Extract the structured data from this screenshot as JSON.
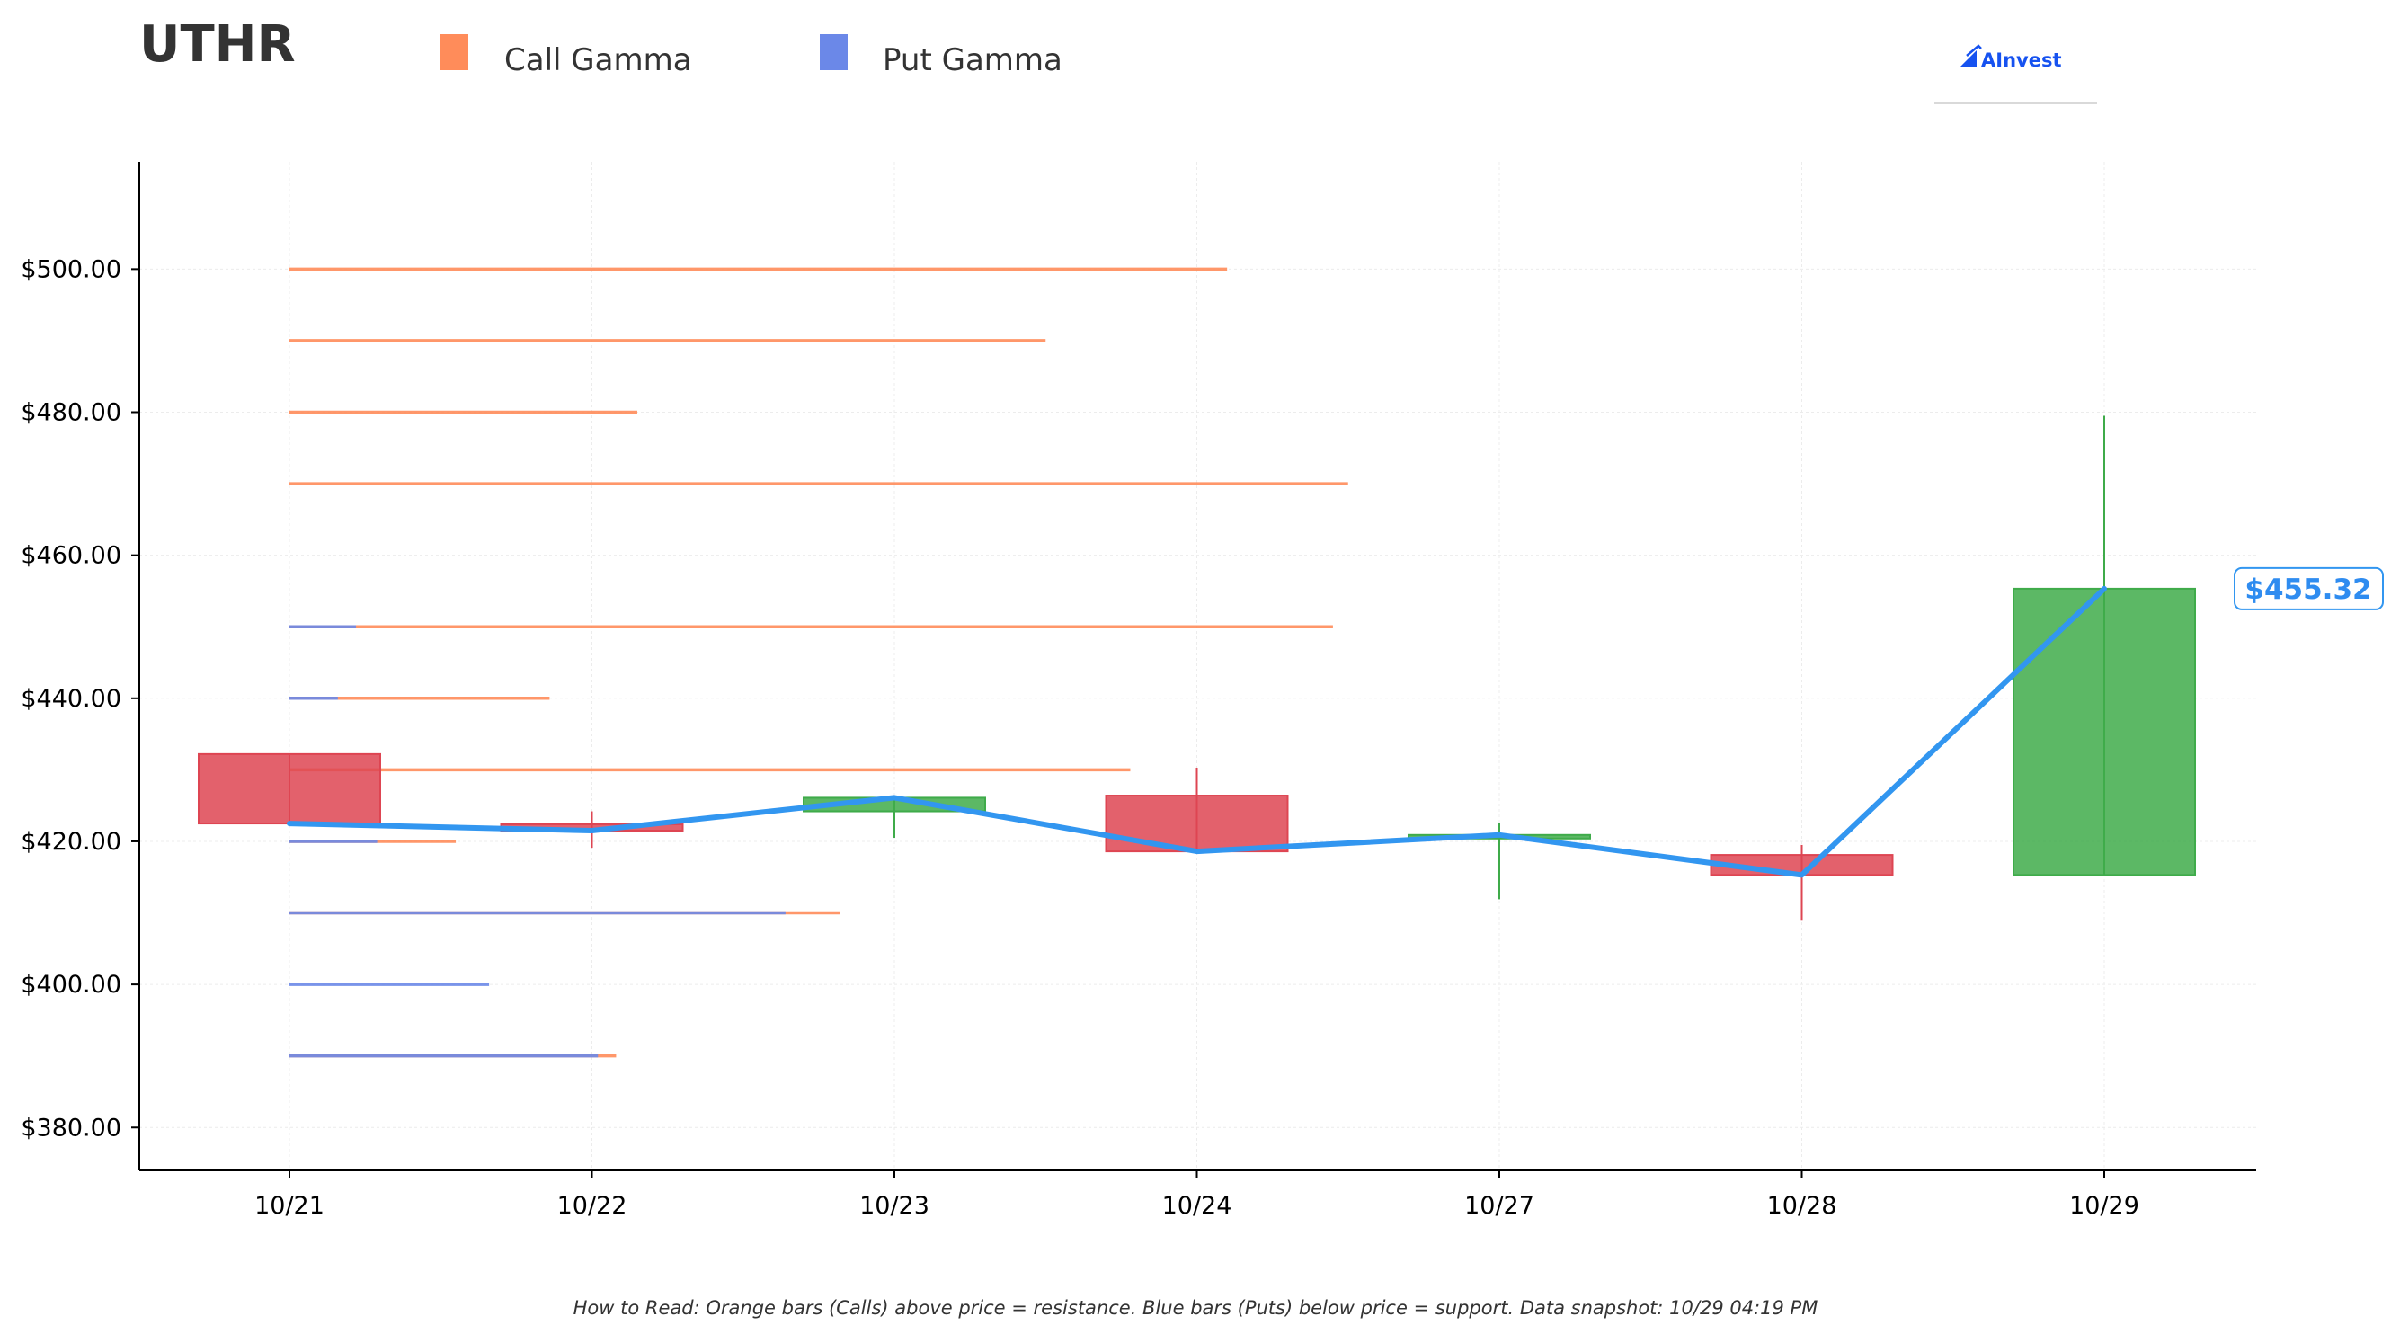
{
  "header": {
    "ticker": "UTHR",
    "brand": "AInvest"
  },
  "legend": [
    {
      "label": "Call Gamma",
      "color": "#ff8c5a"
    },
    {
      "label": "Put Gamma",
      "color": "#6b88e8"
    }
  ],
  "footnote": "How to Read: Orange bars (Calls) above price = resistance. Blue bars (Puts) below price = support. Data snapshot: 10/29 04:19 PM",
  "colors": {
    "up": "#3fab4a",
    "down": "#de4552",
    "price_line": "#3296f0",
    "call": "#ff8c5a",
    "put": "#6b88e8"
  },
  "chart_data": {
    "type": "candlestick",
    "categories": [
      "10/21",
      "10/22",
      "10/23",
      "10/24",
      "10/27",
      "10/28",
      "10/29"
    ],
    "y_ticks": [
      "$380.00",
      "$400.00",
      "$420.00",
      "$440.00",
      "$460.00",
      "$480.00",
      "$500.00"
    ],
    "ylim": [
      374,
      515
    ],
    "candles": [
      {
        "date": "10/21",
        "open": 432.2,
        "close": 422.5,
        "high": 432.2,
        "low": 422.5
      },
      {
        "date": "10/22",
        "open": 422.4,
        "close": 421.5,
        "high": 424.2,
        "low": 419.1
      },
      {
        "date": "10/23",
        "open": 424.2,
        "close": 426.1,
        "high": 426.1,
        "low": 420.5
      },
      {
        "date": "10/24",
        "open": 426.4,
        "close": 418.6,
        "high": 430.3,
        "low": 418.6
      },
      {
        "date": "10/27",
        "open": 420.5,
        "close": 420.9,
        "high": 422.6,
        "low": 411.9
      },
      {
        "date": "10/28",
        "open": 418.1,
        "close": 415.3,
        "high": 419.5,
        "low": 408.9
      },
      {
        "date": "10/29",
        "open": 415.3,
        "close": 455.32,
        "high": 479.5,
        "low": 415.3
      }
    ],
    "price_line": [
      422.5,
      421.5,
      426.1,
      418.6,
      420.9,
      415.3,
      455.32
    ],
    "last_price_label": "$455.32",
    "gamma_levels": [
      {
        "strike": 500,
        "call": 3.1,
        "put": 0
      },
      {
        "strike": 490,
        "call": 2.5,
        "put": 0
      },
      {
        "strike": 480,
        "call": 1.15,
        "put": 0
      },
      {
        "strike": 470,
        "call": 3.5,
        "put": 0
      },
      {
        "strike": 450,
        "call": 3.45,
        "put": 0.22
      },
      {
        "strike": 440,
        "call": 0.86,
        "put": 0.16
      },
      {
        "strike": 430,
        "call": 2.78,
        "put": 0
      },
      {
        "strike": 420,
        "call": 0.55,
        "put": 0.29
      },
      {
        "strike": 410,
        "call": 1.82,
        "put": 1.64
      },
      {
        "strike": 400,
        "call": 0,
        "put": 0.66
      },
      {
        "strike": 390,
        "call": 1.08,
        "put": 1.02
      }
    ],
    "grid": true
  }
}
